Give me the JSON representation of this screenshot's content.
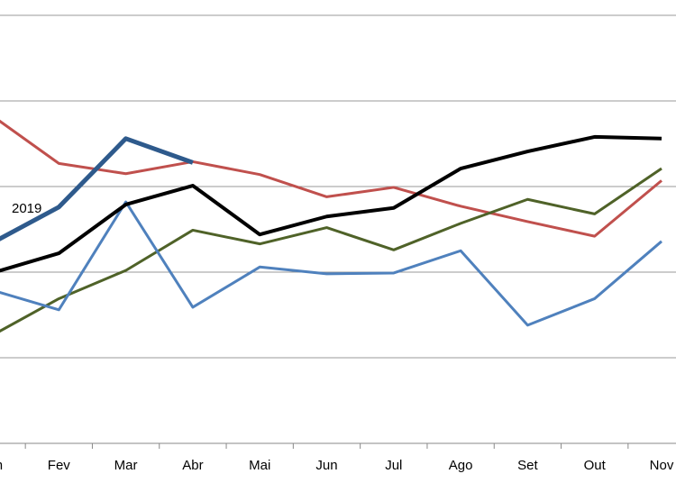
{
  "chart_data": {
    "type": "line",
    "categories": [
      "Jan",
      "Fev",
      "Mar",
      "Abr",
      "Mai",
      "Jun",
      "Jul",
      "Ago",
      "Set",
      "Out",
      "Nov"
    ],
    "ylim": [
      0,
      5
    ],
    "yticks": [
      0,
      1,
      2,
      3,
      4,
      5
    ],
    "grid": true,
    "series": [
      {
        "color": "#c0504d",
        "width": 3,
        "values": [
          3.83,
          3.27,
          3.15,
          3.29,
          3.14,
          2.88,
          2.99,
          2.77,
          2.59,
          2.42,
          3.07
        ]
      },
      {
        "color": "#4f6228",
        "width": 3,
        "values": [
          1.26,
          1.69,
          2.02,
          2.49,
          2.33,
          2.52,
          2.26,
          2.57,
          2.85,
          2.68,
          3.21
        ]
      },
      {
        "color": "#4f81bd",
        "width": 3,
        "values": [
          1.79,
          1.56,
          2.82,
          1.59,
          2.06,
          1.98,
          1.99,
          2.25,
          1.38,
          1.69,
          2.36
        ]
      },
      {
        "color": "#000000",
        "width": 4,
        "values": [
          1.99,
          2.22,
          2.79,
          3.01,
          2.44,
          2.65,
          2.75,
          3.21,
          3.41,
          3.58,
          3.56
        ]
      },
      {
        "name": "2019",
        "color": "#2e5a8c",
        "width": 5,
        "values": [
          2.34,
          2.76,
          3.56,
          3.28,
          null,
          null,
          null,
          null,
          null,
          null,
          null
        ]
      }
    ]
  }
}
